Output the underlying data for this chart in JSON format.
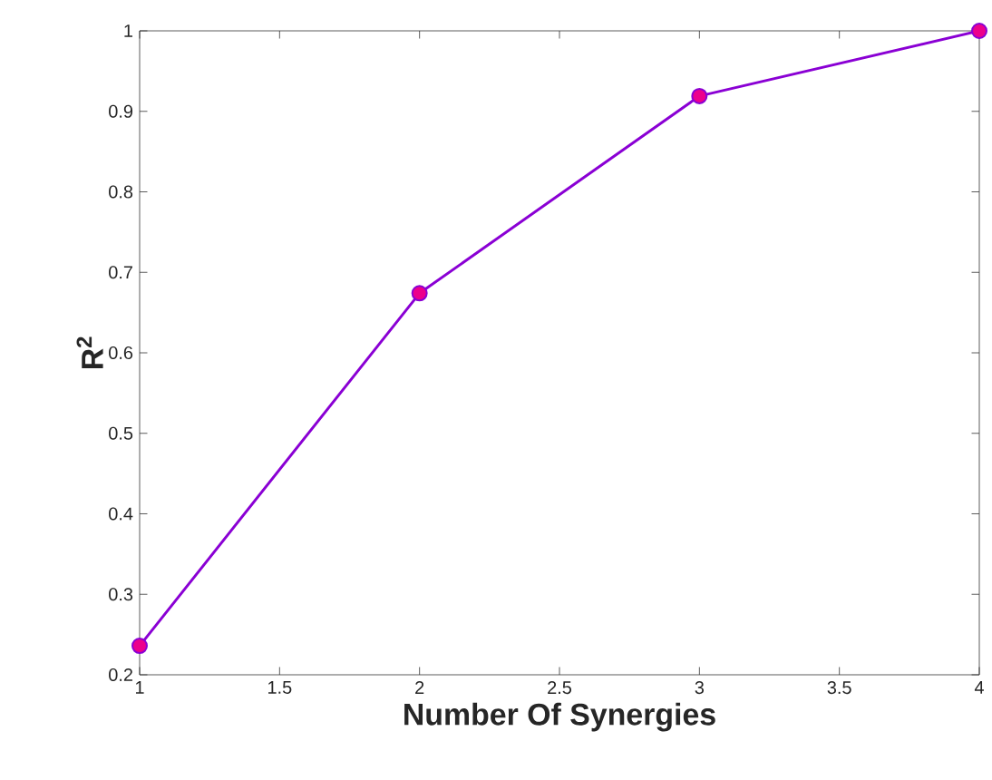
{
  "chart_data": {
    "type": "line",
    "xlabel": "Number Of Synergies",
    "ylabel": "R$^{2}$",
    "x": [
      1,
      2,
      3,
      4
    ],
    "series": [
      {
        "color": "#8a00d4",
        "values": [
          0.236,
          0.674,
          0.919,
          1.0
        ]
      }
    ],
    "marker": "circle",
    "line_style": "solid",
    "xlim": [
      1,
      4
    ],
    "xticks": [
      1,
      1.5,
      2,
      2.5,
      3,
      3.5,
      4
    ],
    "ylim": [
      0.2,
      1
    ],
    "yticks": [
      0.2,
      0.3,
      0.4,
      0.5,
      0.6,
      0.7,
      0.8,
      0.9,
      1
    ]
  }
}
